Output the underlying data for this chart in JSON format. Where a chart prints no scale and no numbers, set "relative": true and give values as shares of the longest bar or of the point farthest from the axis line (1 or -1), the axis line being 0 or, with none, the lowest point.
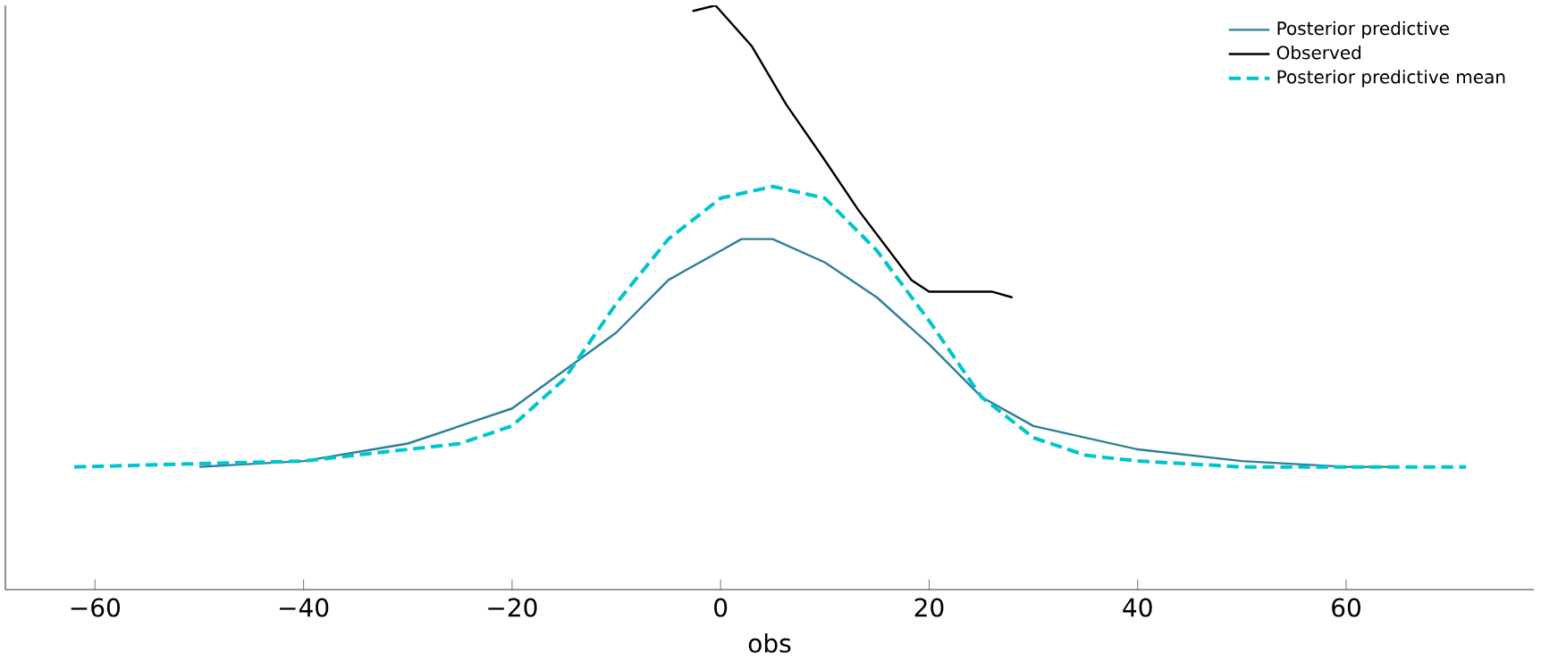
{
  "chart_data": {
    "type": "line",
    "relative": true,
    "xlabel": "obs",
    "xlim": [
      -68.6,
      78
    ],
    "xticks": [
      {
        "value": -60,
        "label": "−60"
      },
      {
        "value": -40,
        "label": "−40"
      },
      {
        "value": -20,
        "label": "−20"
      },
      0,
      20,
      40,
      60
    ],
    "tick_labels": "x",
    "legend": "top right",
    "marker": "none",
    "series": [
      {
        "name": "Posterior predictive",
        "color": "#2d7f96",
        "line_style": "solid",
        "x": [
          -50,
          -40,
          -30,
          -20,
          -10,
          -5,
          0,
          2,
          5,
          10,
          15,
          20,
          25,
          30,
          40,
          50,
          60,
          65
        ],
        "values": [
          0.21,
          0.22,
          0.25,
          0.31,
          0.44,
          0.53,
          0.58,
          0.6,
          0.6,
          0.56,
          0.5,
          0.42,
          0.33,
          0.28,
          0.24,
          0.22,
          0.21,
          0.21
        ]
      },
      {
        "name": "Observed",
        "color": "#000000",
        "line_style": "solid",
        "x": [
          -2.7,
          -0.5,
          3,
          6.3,
          9.8,
          13.2,
          16.6,
          18.3,
          20,
          23.5,
          26,
          28
        ],
        "values": [
          0.99,
          1,
          0.93,
          0.83,
          0.74,
          0.65,
          0.57,
          0.53,
          0.51,
          0.51,
          0.51,
          0.5
        ]
      },
      {
        "name": "Posterior predictive mean",
        "color": "#00c5cd",
        "line_style": "dashed",
        "x": [
          -62,
          -40,
          -30,
          -25,
          -20,
          -15,
          -10,
          -5,
          0,
          5,
          10,
          15,
          20,
          25,
          30,
          35,
          40,
          50,
          60,
          71.5
        ],
        "values": [
          0.21,
          0.22,
          0.24,
          0.25,
          0.28,
          0.36,
          0.49,
          0.6,
          0.67,
          0.69,
          0.67,
          0.58,
          0.46,
          0.33,
          0.26,
          0.23,
          0.22,
          0.21,
          0.21,
          0.21
        ]
      }
    ]
  }
}
